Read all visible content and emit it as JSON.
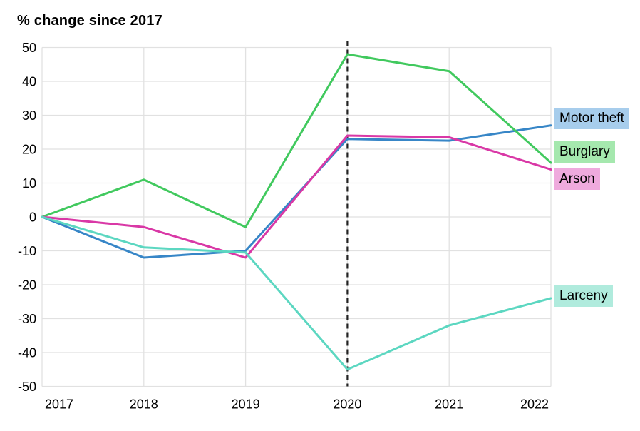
{
  "title": "% change since 2017",
  "chart_data": {
    "type": "line",
    "title": "% change since 2017",
    "categories": [
      "2017",
      "2018",
      "2019",
      "2020",
      "2021",
      "2022"
    ],
    "series": [
      {
        "name": "Motor theft",
        "color": "#3786c7",
        "label_bg": "#a7cdec",
        "values": [
          0,
          -12,
          -10,
          23,
          22.5,
          27
        ]
      },
      {
        "name": "Burglary",
        "color": "#41c95e",
        "label_bg": "#a5e8ae",
        "values": [
          0,
          11,
          -3,
          48,
          43,
          16
        ]
      },
      {
        "name": "Arson",
        "color": "#d938a6",
        "label_bg": "#efaadd",
        "values": [
          0,
          -3,
          -12,
          24,
          23.5,
          14
        ]
      },
      {
        "name": "Larceny",
        "color": "#5cd7c1",
        "label_bg": "#b0ebdd",
        "values": [
          0,
          -9,
          -10.5,
          -45,
          -32,
          -24
        ]
      }
    ],
    "ylim": [
      -50,
      50
    ],
    "y_ticks": [
      50,
      40,
      30,
      20,
      10,
      0,
      -10,
      -20,
      -30,
      -40,
      -50
    ],
    "grid": true,
    "gridline_color": "#e1e1e1",
    "annotation": {
      "type": "vertical-dashed-line",
      "at_category": "2020",
      "color": "#222222"
    },
    "legend_position": "right"
  }
}
